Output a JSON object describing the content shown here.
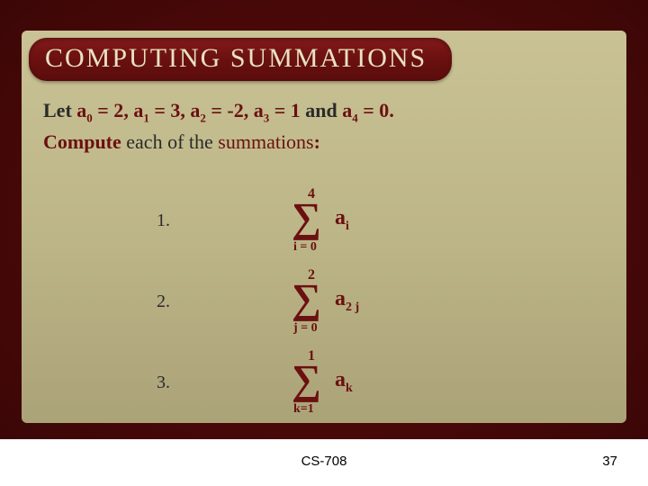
{
  "title": "COMPUTING SUMMATIONS",
  "problem": {
    "let": "Let",
    "terms": [
      {
        "var": "a",
        "sub": "0",
        "eq": "= 2"
      },
      {
        "var": "a",
        "sub": "1",
        "eq": "= 3"
      },
      {
        "var": "a",
        "sub": "2",
        "eq": "= -2"
      },
      {
        "var": "a",
        "sub": "3",
        "eq": "= 1"
      },
      {
        "var": "a",
        "sub": "4",
        "eq": "= 0"
      }
    ],
    "and": "and",
    "compute": "Compute",
    "middle": "each of the",
    "summations": "summations",
    "colon": ":"
  },
  "items": [
    {
      "num": "1.",
      "upper": "4",
      "lower": "i = 0",
      "expr_var": "a",
      "expr_sub": "i"
    },
    {
      "num": "2.",
      "upper": "2",
      "lower": "j = 0",
      "expr_var": "a",
      "expr_sub": "2 j"
    },
    {
      "num": "3.",
      "upper": "1",
      "lower": "k=1",
      "expr_var": "a",
      "expr_sub": "k"
    }
  ],
  "footer": {
    "center": "CS-708",
    "page": "37"
  },
  "colors": {
    "accent": "#6b1010",
    "panel": "#bdb688",
    "bg": "#4a0808"
  }
}
